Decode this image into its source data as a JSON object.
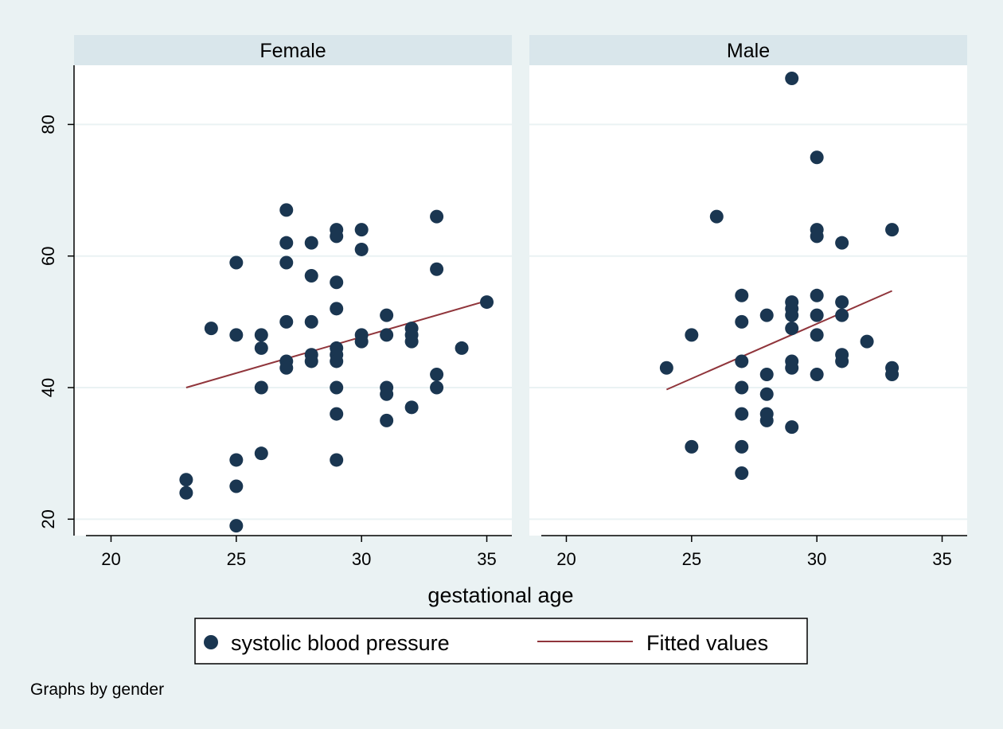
{
  "chart_data": {
    "type": "scatter",
    "by_variable_note": "Graphs by gender",
    "xlabel": "gestational age",
    "ylabel": "",
    "xlim": [
      19,
      36
    ],
    "ylim": [
      17.5,
      89
    ],
    "xticks": [
      20,
      25,
      30,
      35
    ],
    "yticks": [
      20,
      40,
      60,
      80
    ],
    "grid": true,
    "legend": {
      "position": "bottom",
      "entries": [
        {
          "label": "systolic blood pressure",
          "marker": "circle",
          "color": "#1a3651"
        },
        {
          "label": "Fitted values",
          "marker": "line",
          "color": "#90353b"
        }
      ]
    },
    "colors": {
      "background": "#eaf2f3",
      "panel_header": "#d9e6eb",
      "plot_region": "#ffffff",
      "gridline": "#eaf2f3",
      "marker": "#1a3651",
      "fit_line": "#90353b"
    },
    "panels": [
      {
        "title": "Female",
        "points": [
          [
            23,
            26
          ],
          [
            23,
            24
          ],
          [
            24,
            49
          ],
          [
            25,
            59
          ],
          [
            25,
            48
          ],
          [
            25,
            29
          ],
          [
            25,
            25
          ],
          [
            25,
            19
          ],
          [
            26,
            48
          ],
          [
            26,
            46
          ],
          [
            26,
            40
          ],
          [
            26,
            30
          ],
          [
            27,
            67
          ],
          [
            27,
            62
          ],
          [
            27,
            59
          ],
          [
            27,
            50
          ],
          [
            27,
            44
          ],
          [
            27,
            43
          ],
          [
            28,
            62
          ],
          [
            28,
            57
          ],
          [
            28,
            50
          ],
          [
            28,
            45
          ],
          [
            28,
            44
          ],
          [
            29,
            64
          ],
          [
            29,
            63
          ],
          [
            29,
            56
          ],
          [
            29,
            52
          ],
          [
            29,
            46
          ],
          [
            29,
            45
          ],
          [
            29,
            44
          ],
          [
            29,
            40
          ],
          [
            29,
            36
          ],
          [
            29,
            29
          ],
          [
            30,
            64
          ],
          [
            30,
            61
          ],
          [
            30,
            48
          ],
          [
            30,
            47
          ],
          [
            31,
            51
          ],
          [
            31,
            48
          ],
          [
            31,
            40
          ],
          [
            31,
            39
          ],
          [
            31,
            35
          ],
          [
            32,
            49
          ],
          [
            32,
            48
          ],
          [
            32,
            47
          ],
          [
            32,
            37
          ],
          [
            33,
            66
          ],
          [
            33,
            58
          ],
          [
            33,
            42
          ],
          [
            33,
            40
          ],
          [
            34,
            46
          ],
          [
            35,
            53
          ]
        ],
        "fit": [
          [
            23,
            40
          ],
          [
            35,
            53.2
          ]
        ]
      },
      {
        "title": "Male",
        "points": [
          [
            24,
            43
          ],
          [
            25,
            48
          ],
          [
            25,
            31
          ],
          [
            26,
            66
          ],
          [
            27,
            54
          ],
          [
            27,
            50
          ],
          [
            27,
            44
          ],
          [
            27,
            40
          ],
          [
            27,
            36
          ],
          [
            27,
            31
          ],
          [
            27,
            27
          ],
          [
            28,
            51
          ],
          [
            28,
            42
          ],
          [
            28,
            39
          ],
          [
            28,
            36
          ],
          [
            28,
            35
          ],
          [
            29,
            87
          ],
          [
            29,
            53
          ],
          [
            29,
            52
          ],
          [
            29,
            51
          ],
          [
            29,
            49
          ],
          [
            29,
            44
          ],
          [
            29,
            43
          ],
          [
            29,
            34
          ],
          [
            30,
            75
          ],
          [
            30,
            64
          ],
          [
            30,
            63
          ],
          [
            30,
            54
          ],
          [
            30,
            51
          ],
          [
            30,
            48
          ],
          [
            30,
            42
          ],
          [
            31,
            62
          ],
          [
            31,
            53
          ],
          [
            31,
            51
          ],
          [
            31,
            45
          ],
          [
            31,
            44
          ],
          [
            32,
            47
          ],
          [
            33,
            64
          ],
          [
            33,
            43
          ],
          [
            33,
            42
          ]
        ],
        "fit": [
          [
            24,
            39.7
          ],
          [
            33,
            54.7
          ]
        ]
      }
    ]
  }
}
